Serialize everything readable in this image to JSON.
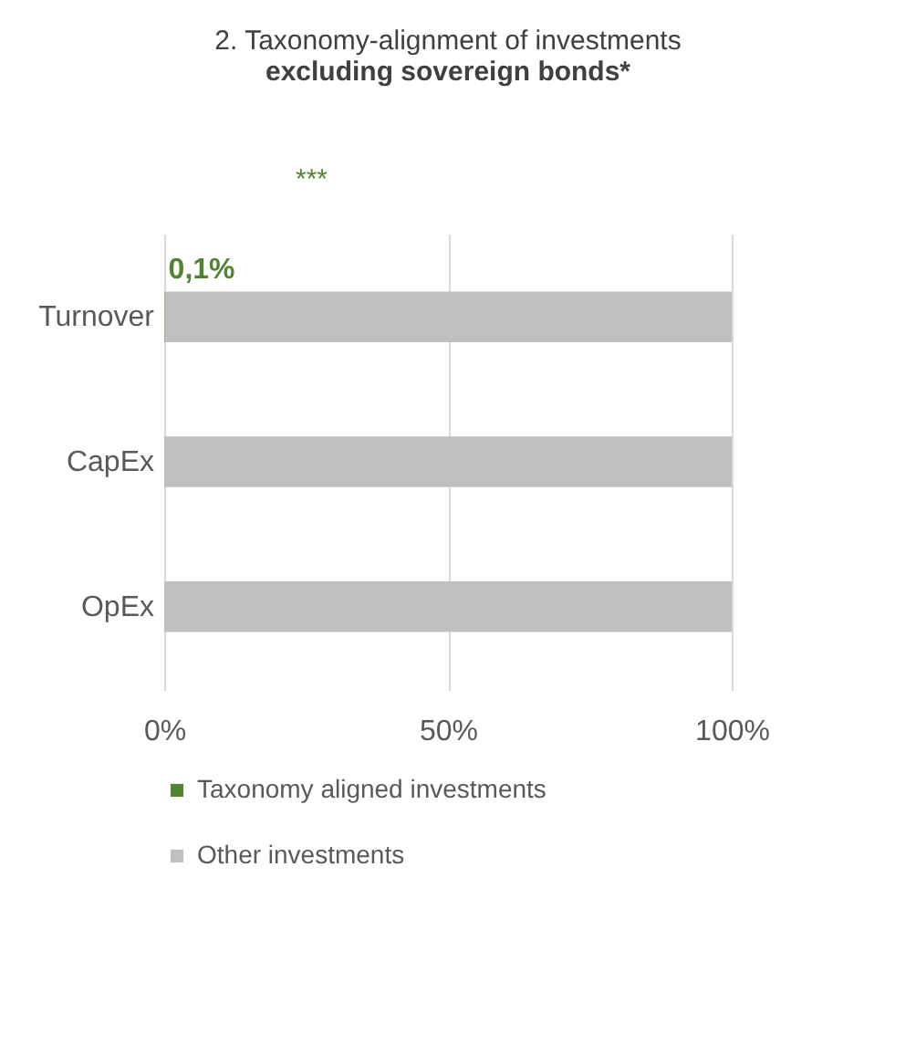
{
  "chart_data": {
    "type": "bar",
    "orientation": "horizontal",
    "stacked": true,
    "title": "2. Taxonomy-alignment of investments",
    "subtitle": "excluding sovereign bonds*",
    "categories": [
      "Turnover",
      "CapEx",
      "OpEx"
    ],
    "series": [
      {
        "name": "Taxonomy aligned investments",
        "color": "#548235",
        "values": [
          0.1,
          0,
          0
        ],
        "value_labels": [
          "0,1%",
          null,
          null
        ]
      },
      {
        "name": "Other investments",
        "color": "#bfbfbf",
        "values": [
          99.9,
          100,
          100
        ]
      }
    ],
    "xlim": [
      0,
      100
    ],
    "xticks": [
      {
        "value": 0,
        "label": "0%"
      },
      {
        "value": 50,
        "label": "50%"
      },
      {
        "value": 100,
        "label": "100%"
      }
    ],
    "grid": "x",
    "legend": "bottom",
    "annotations": [
      "***"
    ]
  }
}
